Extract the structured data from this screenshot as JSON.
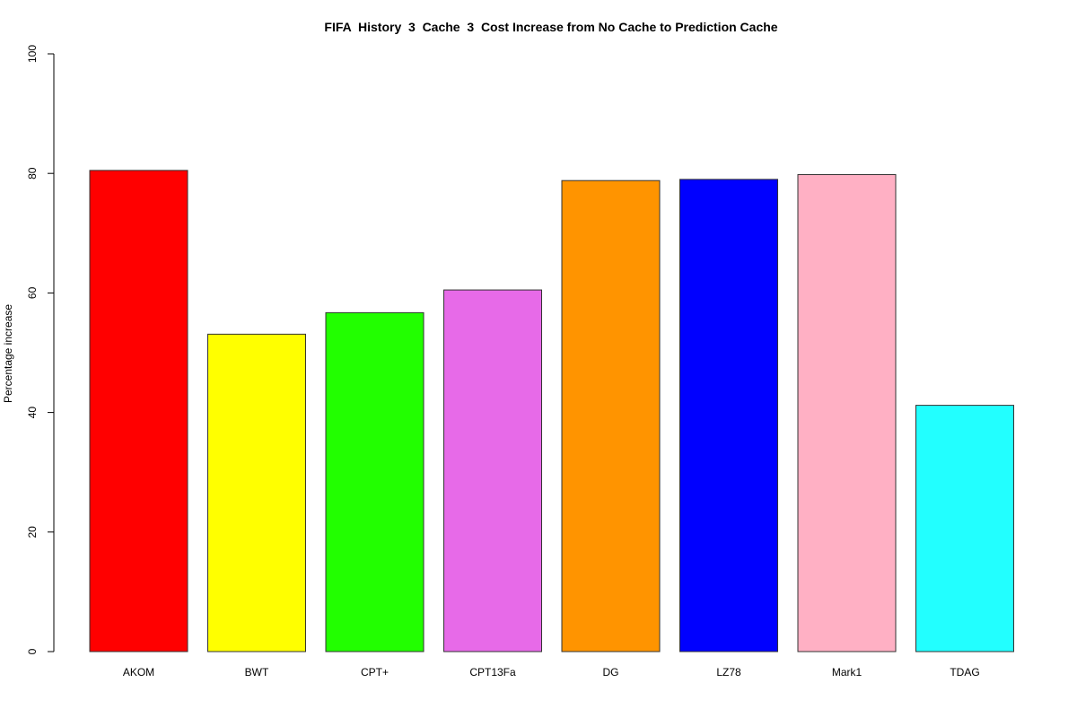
{
  "chart_data": {
    "type": "bar",
    "title": "FIFA  History  3  Cache  3  Cost Increase from No Cache to Prediction Cache",
    "xlabel": "",
    "ylabel": "Percentage increase",
    "ylim": [
      0,
      100
    ],
    "yticks": [
      "0",
      "20",
      "40",
      "60",
      "80",
      "100"
    ],
    "grid": false,
    "legend": "none",
    "categories": [
      "AKOM",
      "BWT",
      "CPT+",
      "CPT13Fa",
      "DG",
      "LZ78",
      "Mark1",
      "TDAG"
    ],
    "values": [
      80.5,
      53.1,
      56.7,
      60.5,
      78.8,
      79.0,
      79.8,
      41.2
    ],
    "colors": [
      "#ff0000",
      "#ffff00",
      "#22ff00",
      "#e76ae8",
      "#ff9400",
      "#0000ff",
      "#ffb0c4",
      "#22ffff"
    ]
  }
}
